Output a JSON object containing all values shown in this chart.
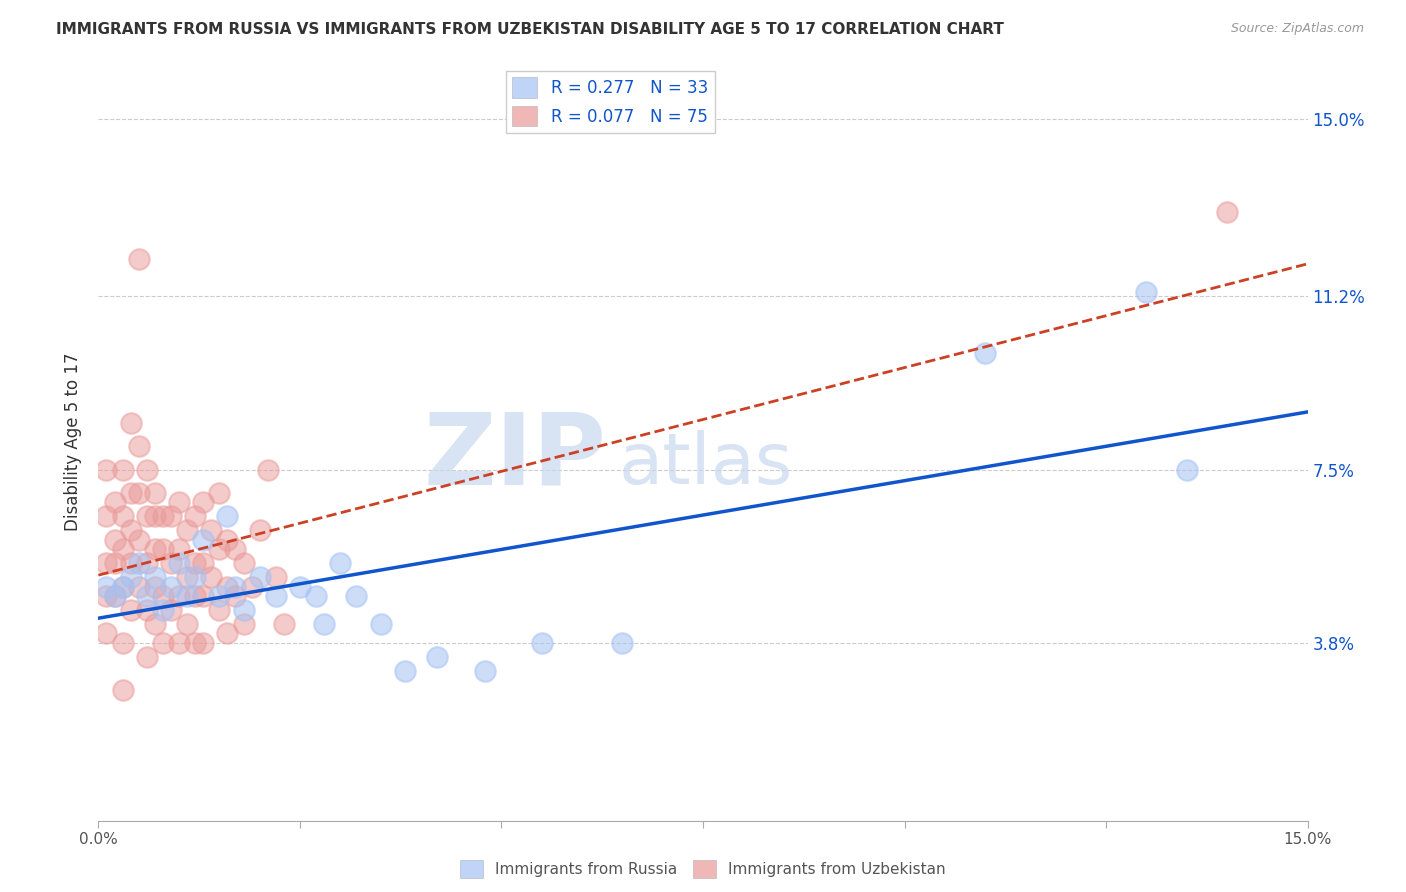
{
  "title": "IMMIGRANTS FROM RUSSIA VS IMMIGRANTS FROM UZBEKISTAN DISABILITY AGE 5 TO 17 CORRELATION CHART",
  "source": "Source: ZipAtlas.com",
  "ylabel": "Disability Age 5 to 17",
  "xlim": [
    0.0,
    0.15
  ],
  "ylim": [
    0.0,
    0.162
  ],
  "russia_R": 0.277,
  "russia_N": 33,
  "uzbekistan_R": 0.077,
  "uzbekistan_N": 75,
  "russia_color": "#a4c2f4",
  "uzbekistan_color": "#ea9999",
  "russia_line_color": "#1155cc",
  "uzbekistan_line_color": "#cc4125",
  "watermark_zip": "ZIP",
  "watermark_atlas": "atlas",
  "ytick_vals": [
    0.0,
    0.038,
    0.075,
    0.112,
    0.15
  ],
  "ytick_labels": [
    "",
    "3.8%",
    "7.5%",
    "11.2%",
    "15.0%"
  ],
  "russia_scatter": [
    [
      0.001,
      0.05
    ],
    [
      0.002,
      0.048
    ],
    [
      0.003,
      0.05
    ],
    [
      0.004,
      0.052
    ],
    [
      0.005,
      0.055
    ],
    [
      0.006,
      0.048
    ],
    [
      0.007,
      0.052
    ],
    [
      0.008,
      0.045
    ],
    [
      0.009,
      0.05
    ],
    [
      0.01,
      0.055
    ],
    [
      0.011,
      0.048
    ],
    [
      0.012,
      0.052
    ],
    [
      0.013,
      0.06
    ],
    [
      0.015,
      0.048
    ],
    [
      0.016,
      0.065
    ],
    [
      0.017,
      0.05
    ],
    [
      0.018,
      0.045
    ],
    [
      0.02,
      0.052
    ],
    [
      0.022,
      0.048
    ],
    [
      0.025,
      0.05
    ],
    [
      0.027,
      0.048
    ],
    [
      0.028,
      0.042
    ],
    [
      0.03,
      0.055
    ],
    [
      0.032,
      0.048
    ],
    [
      0.035,
      0.042
    ],
    [
      0.038,
      0.032
    ],
    [
      0.042,
      0.035
    ],
    [
      0.048,
      0.032
    ],
    [
      0.055,
      0.038
    ],
    [
      0.065,
      0.038
    ],
    [
      0.11,
      0.1
    ],
    [
      0.13,
      0.113
    ],
    [
      0.135,
      0.075
    ]
  ],
  "uzbekistan_scatter": [
    [
      0.001,
      0.075
    ],
    [
      0.001,
      0.065
    ],
    [
      0.001,
      0.055
    ],
    [
      0.001,
      0.048
    ],
    [
      0.001,
      0.04
    ],
    [
      0.002,
      0.068
    ],
    [
      0.002,
      0.06
    ],
    [
      0.002,
      0.055
    ],
    [
      0.002,
      0.048
    ],
    [
      0.003,
      0.075
    ],
    [
      0.003,
      0.065
    ],
    [
      0.003,
      0.058
    ],
    [
      0.003,
      0.05
    ],
    [
      0.003,
      0.038
    ],
    [
      0.003,
      0.028
    ],
    [
      0.004,
      0.085
    ],
    [
      0.004,
      0.07
    ],
    [
      0.004,
      0.062
    ],
    [
      0.004,
      0.055
    ],
    [
      0.004,
      0.045
    ],
    [
      0.005,
      0.12
    ],
    [
      0.005,
      0.08
    ],
    [
      0.005,
      0.07
    ],
    [
      0.005,
      0.06
    ],
    [
      0.005,
      0.05
    ],
    [
      0.006,
      0.075
    ],
    [
      0.006,
      0.065
    ],
    [
      0.006,
      0.055
    ],
    [
      0.006,
      0.045
    ],
    [
      0.006,
      0.035
    ],
    [
      0.007,
      0.07
    ],
    [
      0.007,
      0.065
    ],
    [
      0.007,
      0.058
    ],
    [
      0.007,
      0.05
    ],
    [
      0.007,
      0.042
    ],
    [
      0.008,
      0.065
    ],
    [
      0.008,
      0.058
    ],
    [
      0.008,
      0.048
    ],
    [
      0.008,
      0.038
    ],
    [
      0.009,
      0.065
    ],
    [
      0.009,
      0.055
    ],
    [
      0.009,
      0.045
    ],
    [
      0.01,
      0.068
    ],
    [
      0.01,
      0.058
    ],
    [
      0.01,
      0.048
    ],
    [
      0.01,
      0.038
    ],
    [
      0.011,
      0.062
    ],
    [
      0.011,
      0.052
    ],
    [
      0.011,
      0.042
    ],
    [
      0.012,
      0.065
    ],
    [
      0.012,
      0.055
    ],
    [
      0.012,
      0.048
    ],
    [
      0.012,
      0.038
    ],
    [
      0.013,
      0.068
    ],
    [
      0.013,
      0.055
    ],
    [
      0.013,
      0.048
    ],
    [
      0.013,
      0.038
    ],
    [
      0.014,
      0.062
    ],
    [
      0.014,
      0.052
    ],
    [
      0.015,
      0.07
    ],
    [
      0.015,
      0.058
    ],
    [
      0.015,
      0.045
    ],
    [
      0.016,
      0.06
    ],
    [
      0.016,
      0.05
    ],
    [
      0.016,
      0.04
    ],
    [
      0.017,
      0.058
    ],
    [
      0.017,
      0.048
    ],
    [
      0.018,
      0.055
    ],
    [
      0.018,
      0.042
    ],
    [
      0.019,
      0.05
    ],
    [
      0.02,
      0.062
    ],
    [
      0.021,
      0.075
    ],
    [
      0.022,
      0.052
    ],
    [
      0.023,
      0.042
    ],
    [
      0.14,
      0.13
    ]
  ]
}
